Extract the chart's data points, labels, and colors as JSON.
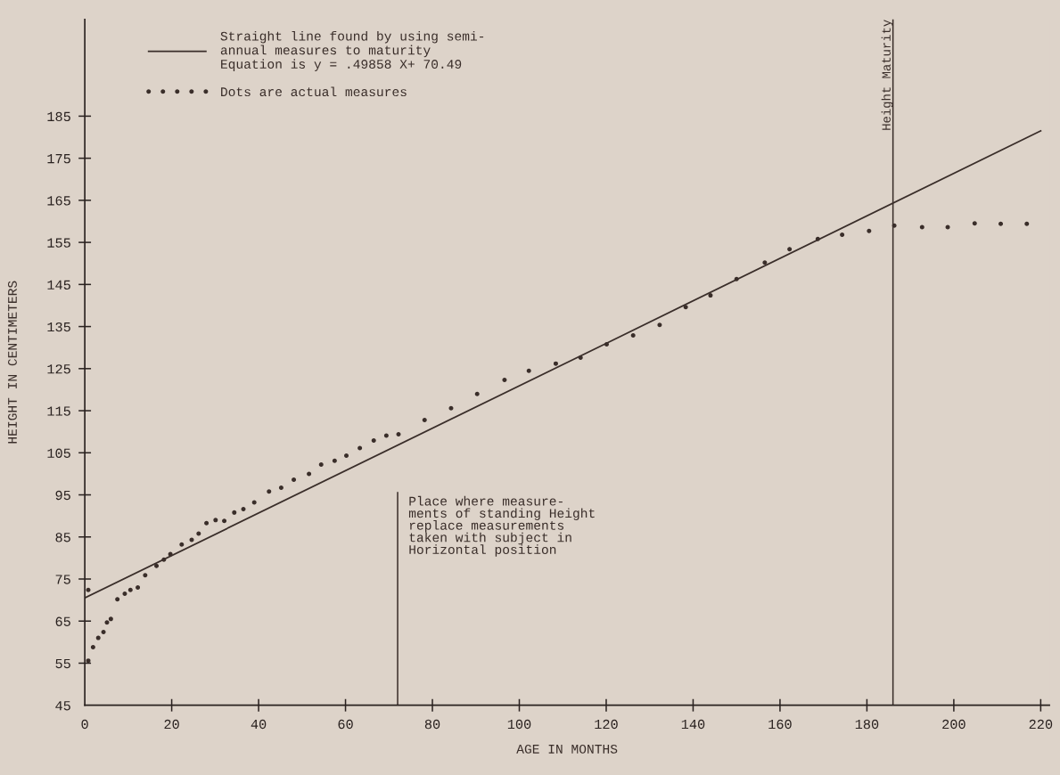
{
  "chart_data": {
    "type": "scatter",
    "xlabel": "AGE IN MONTHS",
    "ylabel": "HEIGHT IN CENTIMETERS",
    "xlim": [
      0,
      222
    ],
    "ylim": [
      45,
      208
    ],
    "xticks": [
      0,
      20,
      40,
      60,
      80,
      100,
      120,
      140,
      160,
      180,
      200,
      220
    ],
    "yticks": [
      45,
      55,
      65,
      75,
      85,
      95,
      105,
      115,
      125,
      135,
      145,
      155,
      165,
      175,
      185
    ],
    "grid": false,
    "legend": "top left",
    "series": [
      {
        "type": "line",
        "marker": "none",
        "name": "Straight line found by using semi-\nannual measures to maturity\nEquation is y = .49858 X+ 70.49",
        "color": "#3a2e2a",
        "line_style": "solid",
        "x": [
          0,
          120,
          220
        ],
        "values": [
          70.5,
          131,
          181.5
        ]
      },
      {
        "marker": "circle",
        "name": "Dots are actual measures",
        "color": "#3a2e2a",
        "x": [
          0.8,
          0.8,
          1.9,
          3.1,
          4.3,
          5.1,
          6.0,
          7.5,
          9.2,
          10.5,
          12.2,
          13.9,
          16.5,
          18.2,
          19.7,
          22.3,
          24.6,
          26.2,
          28.0,
          30.1,
          32.1,
          34.4,
          36.5,
          39.0,
          42.4,
          45.2,
          48.1,
          51.6,
          54.4,
          57.5,
          60.2,
          63.3,
          66.5,
          69.4,
          72.2,
          78.2,
          84.3,
          90.3,
          96.6,
          102.2,
          108.4,
          114.1,
          120.1,
          126.2,
          132.3,
          138.3,
          144.0,
          150.0,
          156.5,
          162.2,
          168.7,
          174.3,
          180.5,
          186.3,
          192.7,
          198.6,
          204.8,
          210.8,
          216.8
        ],
        "values": [
          72.4,
          55.6,
          58.8,
          61.0,
          62.4,
          64.7,
          65.5,
          70.2,
          71.5,
          72.4,
          73.0,
          75.9,
          78.1,
          79.6,
          80.9,
          83.2,
          84.3,
          85.8,
          88.3,
          89.0,
          88.8,
          90.8,
          91.6,
          93.2,
          95.8,
          96.7,
          98.6,
          100.0,
          102.2,
          103.1,
          104.3,
          106.1,
          107.9,
          109.1,
          109.4,
          112.8,
          115.6,
          119.0,
          122.3,
          124.5,
          126.2,
          127.6,
          130.8,
          132.9,
          135.4,
          139.6,
          142.4,
          146.3,
          150.2,
          153.4,
          155.8,
          156.8,
          157.7,
          159.0,
          158.6,
          158.6,
          159.5,
          159.4,
          159.4
        ]
      }
    ],
    "ref_lines": [
      {
        "axis": "x",
        "value": 186,
        "label": "Height Maturity",
        "color": "#3a2e2a"
      },
      {
        "axis": "x",
        "value": 72,
        "label": "Place where measure-\nments of standing Height\nreplace measurements\ntaken with subject in\nHorizontal position",
        "color": "#3a2e2a"
      }
    ]
  }
}
